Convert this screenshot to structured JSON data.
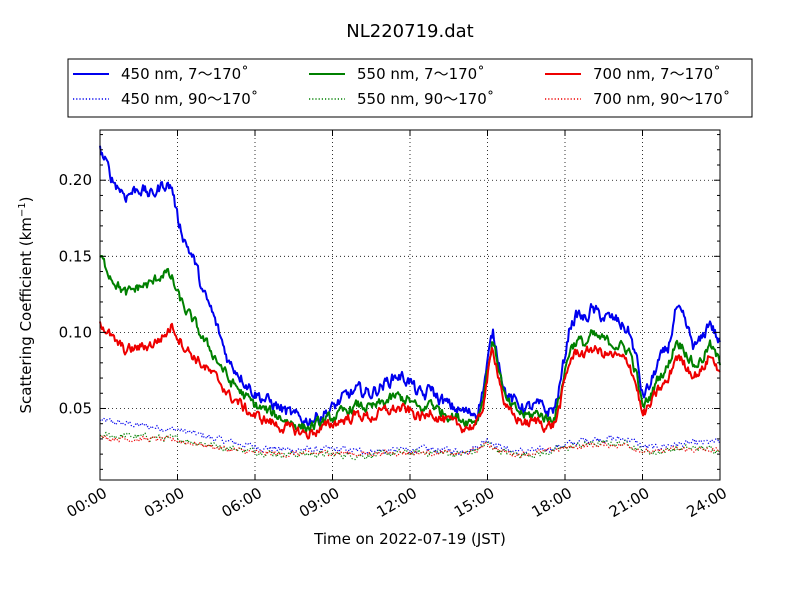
{
  "chart_data": {
    "type": "line",
    "title": "NL220719.dat",
    "xlabel": "Time on 2022-07-19 (JST)",
    "ylabel_main": "Scattering Coefficient (km",
    "ylabel_sup": "−1",
    "ylabel_end": ")",
    "xlim": [
      0,
      24
    ],
    "ylim": [
      0.003,
      0.233
    ],
    "x_ticks": [
      0,
      3,
      6,
      9,
      12,
      15,
      18,
      21,
      24
    ],
    "x_tick_labels": [
      "00:00",
      "03:00",
      "06:00",
      "09:00",
      "12:00",
      "15:00",
      "18:00",
      "21:00",
      "24:00"
    ],
    "y_ticks": [
      0.05,
      0.1,
      0.15,
      0.2
    ],
    "y_tick_labels": [
      "0.05",
      "0.10",
      "0.15",
      "0.20"
    ],
    "grid": true,
    "legend_position": "top",
    "colors": {
      "blue": "#0000ee",
      "green": "#008000",
      "red": "#ee0000"
    },
    "series": [
      {
        "name": "450 nm, 7～170˚",
        "color": "#0000ee",
        "style": "solid",
        "x": [
          0,
          0.5,
          1,
          1.5,
          2,
          2.5,
          2.8,
          3,
          3.3,
          3.7,
          4,
          4.3,
          4.6,
          4.8,
          5,
          5.3,
          5.6,
          6,
          6.5,
          7,
          7.5,
          8,
          8.5,
          9,
          9.5,
          10,
          10.5,
          11,
          11.5,
          12,
          12.3,
          12.6,
          12.8,
          13,
          13.5,
          14,
          14.3,
          14.6,
          14.8,
          15,
          15.2,
          15.4,
          15.7,
          16,
          16.5,
          17,
          17.3,
          17.6,
          17.8,
          18,
          18.2,
          18.5,
          18.8,
          19,
          19.5,
          20,
          20.5,
          20.8,
          21,
          21.3,
          21.6,
          22,
          22.3,
          22.6,
          23,
          23.3,
          23.6,
          24
        ],
        "y": [
          0.22,
          0.2,
          0.19,
          0.195,
          0.19,
          0.198,
          0.195,
          0.175,
          0.16,
          0.145,
          0.125,
          0.115,
          0.1,
          0.09,
          0.08,
          0.075,
          0.068,
          0.06,
          0.055,
          0.05,
          0.045,
          0.042,
          0.045,
          0.05,
          0.058,
          0.062,
          0.06,
          0.066,
          0.072,
          0.068,
          0.06,
          0.058,
          0.065,
          0.058,
          0.052,
          0.048,
          0.047,
          0.048,
          0.06,
          0.08,
          0.1,
          0.085,
          0.06,
          0.055,
          0.05,
          0.052,
          0.048,
          0.05,
          0.065,
          0.085,
          0.105,
          0.112,
          0.108,
          0.115,
          0.11,
          0.108,
          0.1,
          0.08,
          0.058,
          0.065,
          0.08,
          0.09,
          0.115,
          0.108,
          0.09,
          0.095,
          0.108,
          0.092
        ],
        "noise": 0.0035
      },
      {
        "name": "550 nm, 7～170˚",
        "color": "#008000",
        "style": "solid",
        "x": [
          0,
          0.5,
          1,
          1.5,
          2,
          2.5,
          2.8,
          3,
          3.3,
          3.7,
          4,
          4.3,
          4.6,
          4.8,
          5,
          5.3,
          5.6,
          6,
          6.5,
          7,
          7.5,
          8,
          8.5,
          9,
          9.5,
          10,
          10.5,
          11,
          11.5,
          12,
          12.3,
          12.6,
          12.8,
          13,
          13.5,
          14,
          14.3,
          14.6,
          14.8,
          15,
          15.2,
          15.4,
          15.7,
          16,
          16.5,
          17,
          17.3,
          17.6,
          17.8,
          18,
          18.2,
          18.5,
          18.8,
          19,
          19.5,
          20,
          20.5,
          20.8,
          21,
          21.3,
          21.6,
          22,
          22.3,
          22.6,
          23,
          23.3,
          23.6,
          24
        ],
        "y": [
          0.15,
          0.135,
          0.125,
          0.13,
          0.132,
          0.14,
          0.135,
          0.125,
          0.115,
          0.105,
          0.095,
          0.088,
          0.08,
          0.075,
          0.068,
          0.064,
          0.058,
          0.052,
          0.048,
          0.044,
          0.04,
          0.037,
          0.04,
          0.044,
          0.048,
          0.052,
          0.05,
          0.054,
          0.058,
          0.055,
          0.05,
          0.049,
          0.056,
          0.05,
          0.046,
          0.043,
          0.042,
          0.043,
          0.055,
          0.075,
          0.095,
          0.08,
          0.055,
          0.05,
          0.045,
          0.047,
          0.043,
          0.045,
          0.058,
          0.075,
          0.09,
          0.095,
          0.092,
          0.098,
          0.095,
          0.092,
          0.088,
          0.07,
          0.05,
          0.058,
          0.07,
          0.078,
          0.095,
          0.09,
          0.078,
          0.082,
          0.092,
          0.08
        ],
        "noise": 0.003
      },
      {
        "name": "700 nm, 7～170˚",
        "color": "#ee0000",
        "style": "solid",
        "x": [
          0,
          0.5,
          1,
          1.5,
          2,
          2.5,
          2.8,
          3,
          3.3,
          3.7,
          4,
          4.3,
          4.6,
          4.8,
          5,
          5.3,
          5.6,
          6,
          6.5,
          7,
          7.5,
          8,
          8.5,
          9,
          9.5,
          10,
          10.5,
          11,
          11.5,
          12,
          12.3,
          12.6,
          12.8,
          13,
          13.5,
          14,
          14.3,
          14.6,
          14.8,
          15,
          15.2,
          15.4,
          15.7,
          16,
          16.5,
          17,
          17.3,
          17.6,
          17.8,
          18,
          18.2,
          18.5,
          18.8,
          19,
          19.5,
          20,
          20.5,
          20.8,
          21,
          21.3,
          21.6,
          22,
          22.3,
          22.6,
          23,
          23.3,
          23.6,
          24
        ],
        "y": [
          0.108,
          0.095,
          0.088,
          0.09,
          0.092,
          0.098,
          0.105,
          0.098,
          0.09,
          0.083,
          0.078,
          0.073,
          0.068,
          0.064,
          0.058,
          0.055,
          0.05,
          0.045,
          0.042,
          0.038,
          0.036,
          0.033,
          0.036,
          0.04,
          0.043,
          0.046,
          0.044,
          0.048,
          0.05,
          0.048,
          0.045,
          0.044,
          0.05,
          0.045,
          0.041,
          0.038,
          0.038,
          0.039,
          0.05,
          0.07,
          0.09,
          0.075,
          0.05,
          0.045,
          0.04,
          0.042,
          0.038,
          0.04,
          0.052,
          0.068,
          0.082,
          0.088,
          0.085,
          0.09,
          0.086,
          0.084,
          0.08,
          0.063,
          0.045,
          0.052,
          0.062,
          0.068,
          0.085,
          0.08,
          0.072,
          0.075,
          0.085,
          0.075
        ],
        "noise": 0.003
      },
      {
        "name": "450 nm, 90～170˚",
        "color": "#0000ee",
        "style": "dotted",
        "x": [
          0,
          1,
          2,
          3,
          4,
          5,
          6,
          7,
          8,
          9,
          10,
          11,
          12,
          13,
          14,
          14.5,
          15,
          15.5,
          16,
          17,
          18,
          19,
          20,
          20.5,
          21,
          21.5,
          22,
          23,
          24
        ],
        "y": [
          0.042,
          0.04,
          0.038,
          0.036,
          0.032,
          0.028,
          0.025,
          0.023,
          0.023,
          0.023,
          0.022,
          0.022,
          0.023,
          0.023,
          0.022,
          0.024,
          0.03,
          0.025,
          0.022,
          0.022,
          0.026,
          0.03,
          0.03,
          0.03,
          0.025,
          0.024,
          0.026,
          0.027,
          0.028
        ],
        "noise": 0.0018
      },
      {
        "name": "550 nm, 90～170˚",
        "color": "#008000",
        "style": "dotted",
        "x": [
          0,
          1,
          2,
          3,
          4,
          5,
          6,
          7,
          8,
          9,
          10,
          11,
          12,
          13,
          14,
          14.5,
          15,
          15.5,
          16,
          17,
          18,
          19,
          20,
          20.5,
          21,
          21.5,
          22,
          23,
          24
        ],
        "y": [
          0.032,
          0.032,
          0.031,
          0.03,
          0.027,
          0.024,
          0.022,
          0.02,
          0.02,
          0.02,
          0.019,
          0.02,
          0.021,
          0.021,
          0.02,
          0.022,
          0.027,
          0.022,
          0.02,
          0.02,
          0.024,
          0.027,
          0.027,
          0.027,
          0.022,
          0.021,
          0.023,
          0.024,
          0.023
        ],
        "noise": 0.0018
      },
      {
        "name": "700 nm, 90～170˚",
        "color": "#ee0000",
        "style": "dotted",
        "x": [
          0,
          1,
          2,
          3,
          4,
          5,
          6,
          7,
          8,
          9,
          10,
          11,
          12,
          13,
          14,
          14.5,
          15,
          15.5,
          16,
          17,
          18,
          19,
          20,
          20.5,
          21,
          21.5,
          22,
          23,
          24
        ],
        "y": [
          0.031,
          0.03,
          0.03,
          0.029,
          0.026,
          0.023,
          0.021,
          0.02,
          0.02,
          0.021,
          0.02,
          0.021,
          0.021,
          0.021,
          0.02,
          0.022,
          0.027,
          0.022,
          0.02,
          0.021,
          0.024,
          0.026,
          0.026,
          0.026,
          0.022,
          0.021,
          0.023,
          0.023,
          0.022
        ],
        "noise": 0.0015
      }
    ],
    "legend_order": [
      0,
      3,
      1,
      4,
      2,
      5
    ]
  }
}
